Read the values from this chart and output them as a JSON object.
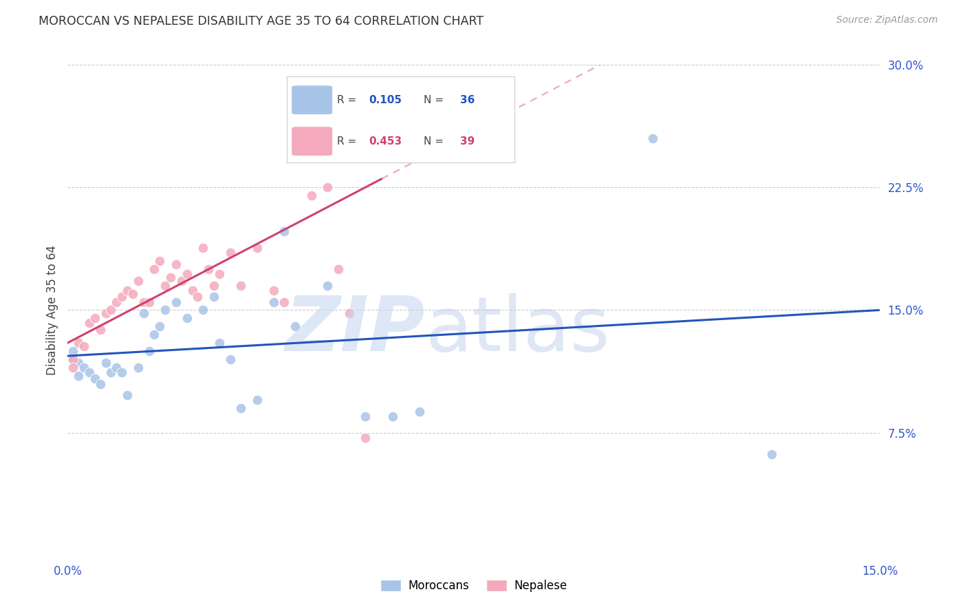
{
  "title": "MOROCCAN VS NEPALESE DISABILITY AGE 35 TO 64 CORRELATION CHART",
  "source": "Source: ZipAtlas.com",
  "ylabel": "Disability Age 35 to 64",
  "xlim": [
    0.0,
    0.15
  ],
  "ylim": [
    0.0,
    0.3
  ],
  "moroccan_color": "#a8c4e8",
  "nepalese_color": "#f4aabc",
  "moroccan_line_color": "#2255bb",
  "nepalese_line_color": "#d04070",
  "nepalese_dashed_color": "#e8a8b8",
  "background_color": "#ffffff",
  "grid_color": "#cccccc",
  "marker_size": 110,
  "moroccan_x": [
    0.001,
    0.001,
    0.002,
    0.002,
    0.003,
    0.004,
    0.005,
    0.006,
    0.007,
    0.008,
    0.009,
    0.01,
    0.011,
    0.013,
    0.014,
    0.015,
    0.016,
    0.017,
    0.018,
    0.02,
    0.022,
    0.025,
    0.027,
    0.028,
    0.03,
    0.032,
    0.035,
    0.038,
    0.04,
    0.042,
    0.048,
    0.055,
    0.06,
    0.065,
    0.108,
    0.13
  ],
  "moroccan_y": [
    0.125,
    0.12,
    0.118,
    0.11,
    0.115,
    0.112,
    0.108,
    0.105,
    0.118,
    0.112,
    0.115,
    0.112,
    0.098,
    0.115,
    0.148,
    0.125,
    0.135,
    0.14,
    0.15,
    0.155,
    0.145,
    0.15,
    0.158,
    0.13,
    0.12,
    0.09,
    0.095,
    0.155,
    0.198,
    0.14,
    0.165,
    0.085,
    0.085,
    0.088,
    0.255,
    0.062
  ],
  "nepalese_x": [
    0.001,
    0.001,
    0.002,
    0.003,
    0.004,
    0.005,
    0.006,
    0.007,
    0.008,
    0.009,
    0.01,
    0.011,
    0.012,
    0.013,
    0.014,
    0.015,
    0.016,
    0.017,
    0.018,
    0.019,
    0.02,
    0.021,
    0.022,
    0.023,
    0.024,
    0.025,
    0.026,
    0.027,
    0.028,
    0.03,
    0.032,
    0.035,
    0.038,
    0.04,
    0.045,
    0.048,
    0.05,
    0.052,
    0.055
  ],
  "nepalese_y": [
    0.12,
    0.115,
    0.13,
    0.128,
    0.142,
    0.145,
    0.138,
    0.148,
    0.15,
    0.155,
    0.158,
    0.162,
    0.16,
    0.168,
    0.155,
    0.155,
    0.175,
    0.18,
    0.165,
    0.17,
    0.178,
    0.168,
    0.172,
    0.162,
    0.158,
    0.188,
    0.175,
    0.165,
    0.172,
    0.185,
    0.165,
    0.188,
    0.162,
    0.155,
    0.22,
    0.225,
    0.175,
    0.148,
    0.072
  ]
}
